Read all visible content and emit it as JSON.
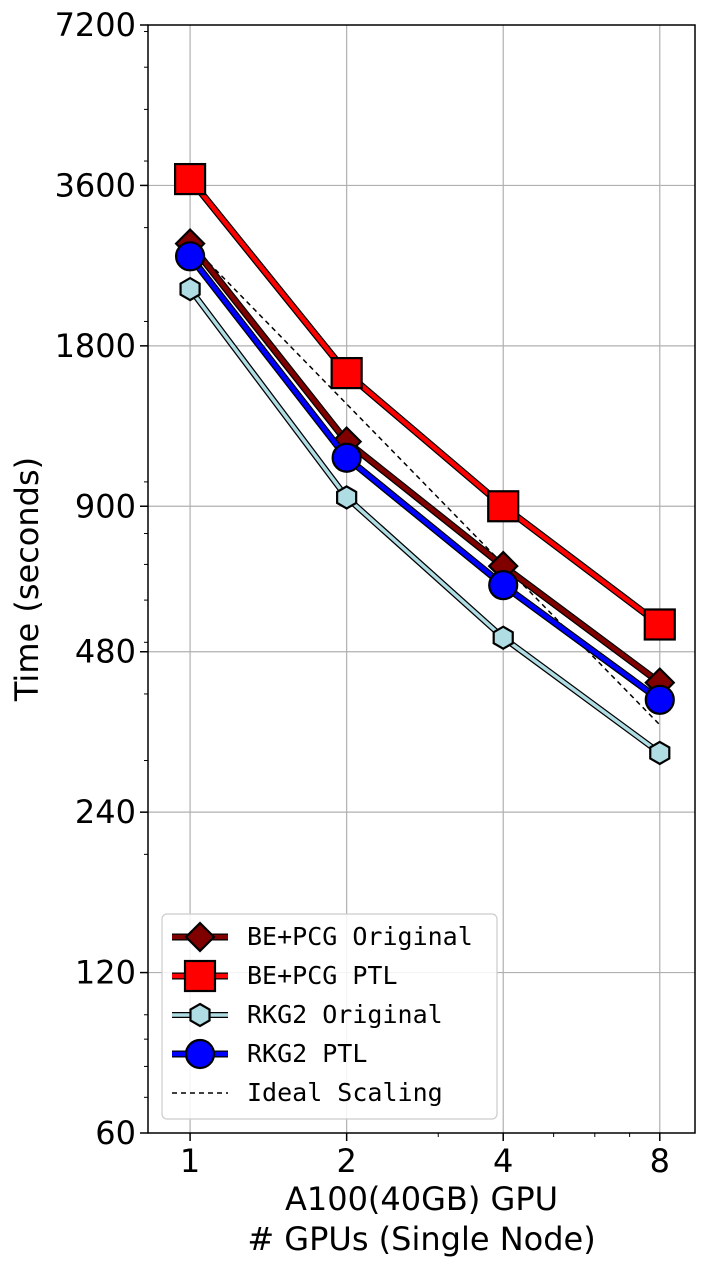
{
  "chart_data": {
    "type": "line",
    "xlabel_line1": "A100(40GB) GPU",
    "xlabel_line2": "# GPUs (Single Node)",
    "ylabel": "Time (seconds)",
    "x_scale": "log2",
    "y_scale": "log",
    "x_ticks": [
      "1",
      "2",
      "4",
      "8"
    ],
    "y_ticks": [
      "60",
      "120",
      "240",
      "480",
      "900",
      "1800",
      "3600",
      "7200"
    ],
    "x": [
      1,
      2,
      4,
      8
    ],
    "xlim": [
      0.83,
      9.35
    ],
    "ylim": [
      60,
      7200
    ],
    "grid": true,
    "legend_position": "lower-left",
    "series": [
      {
        "name": "BE+PCG Original",
        "values": [
          2800,
          1190,
          695,
          420
        ],
        "color": "#800000",
        "marker": "diamond"
      },
      {
        "name": "BE+PCG PTL",
        "values": [
          3700,
          1600,
          900,
          540
        ],
        "color": "#ff0000",
        "marker": "square"
      },
      {
        "name": "RKG2 Original",
        "values": [
          2300,
          935,
          510,
          310
        ],
        "color": "#b0dde4",
        "marker": "hexagon"
      },
      {
        "name": "RKG2 PTL",
        "values": [
          2650,
          1110,
          640,
          390
        ],
        "color": "#0000ff",
        "marker": "circle"
      },
      {
        "name": "Ideal Scaling",
        "values": [
          2800,
          1400,
          700,
          350
        ],
        "color": "#000000",
        "marker": "none",
        "dashed": true
      }
    ]
  }
}
